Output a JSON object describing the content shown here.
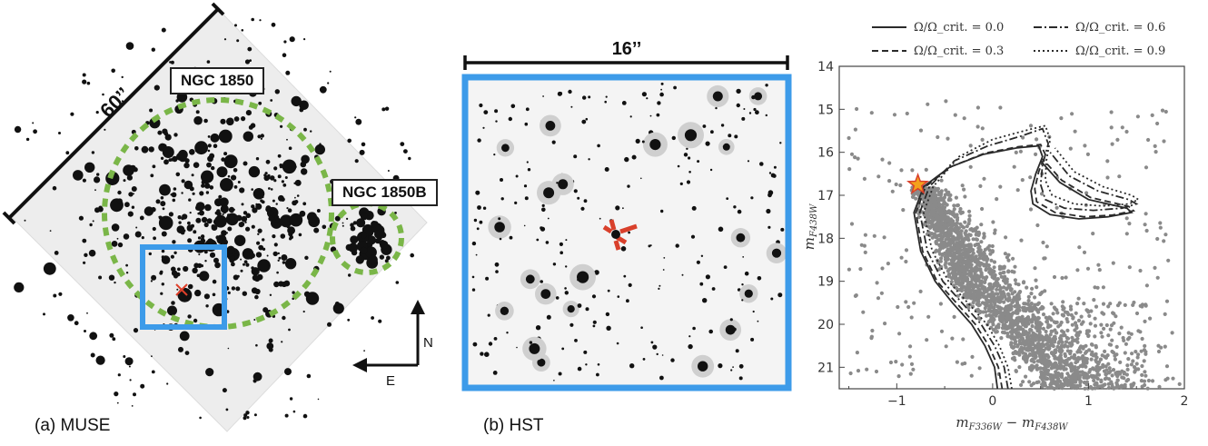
{
  "panel_a": {
    "scale_label": "60’’",
    "cluster_label": "NGC 1850",
    "cluster_b_label": "NGC 1850B",
    "compass_n": "N",
    "compass_e": "E",
    "caption_letter": "(a)",
    "caption_text": "MUSE",
    "colors": {
      "circle": "#7ab648",
      "box": "#3d9be9",
      "marker": "#e0402a"
    }
  },
  "panel_b": {
    "scale_label": "16’’",
    "caption_letter": "(b)",
    "caption_text": "HST",
    "colors": {
      "frame": "#3d9be9",
      "marker": "#d9402b"
    }
  },
  "chart_data": {
    "type": "scatter",
    "xlabel": "m_F336W − m_F438W",
    "ylabel": "m_F438W",
    "xlim": [
      -1.6,
      2.0
    ],
    "ylim": [
      21.5,
      14.0
    ],
    "x_ticks": [
      "−1",
      "0",
      "1",
      "2"
    ],
    "y_ticks": [
      "14",
      "15",
      "16",
      "17",
      "18",
      "19",
      "20",
      "21"
    ],
    "legend": [
      {
        "label": "Ω/Ω_crit. = 0.0",
        "style": "solid"
      },
      {
        "label": "Ω/Ω_crit. = 0.6",
        "style": "dashdot"
      },
      {
        "label": "Ω/Ω_crit. = 0.3",
        "style": "dashed"
      },
      {
        "label": "Ω/Ω_crit. = 0.9",
        "style": "dotted"
      }
    ],
    "highlighted_star": {
      "x": -0.78,
      "y": 16.75
    },
    "series": [
      {
        "name": "Ω/Ω_crit. = 0.0",
        "style": "solid",
        "x": [
          0.05,
          0.02,
          -0.08,
          -0.22,
          -0.42,
          -0.6,
          -0.75,
          -0.82,
          -0.72,
          -0.45,
          -0.1,
          0.25,
          0.48,
          0.52,
          0.45,
          0.4,
          0.42,
          0.6,
          0.9,
          1.2,
          1.45,
          1.4,
          1.0,
          0.7,
          0.5
        ],
        "y": [
          21.5,
          21.0,
          20.5,
          20.0,
          19.5,
          19.0,
          18.3,
          17.4,
          16.8,
          16.35,
          16.05,
          15.9,
          15.85,
          16.1,
          16.5,
          16.9,
          17.2,
          17.45,
          17.55,
          17.5,
          17.4,
          17.3,
          17.1,
          16.7,
          16.2
        ]
      },
      {
        "name": "Ω/Ω_crit. = 0.3",
        "style": "dashed",
        "x": [
          0.1,
          0.06,
          -0.04,
          -0.18,
          -0.38,
          -0.58,
          -0.73,
          -0.8,
          -0.7,
          -0.43,
          -0.08,
          0.27,
          0.5,
          0.55,
          0.48,
          0.44,
          0.46,
          0.65,
          0.95,
          1.25,
          1.47,
          1.42,
          1.02,
          0.72,
          0.52
        ],
        "y": [
          21.5,
          21.0,
          20.5,
          20.0,
          19.5,
          19.0,
          18.3,
          17.4,
          16.8,
          16.33,
          16.02,
          15.87,
          15.82,
          16.05,
          16.45,
          16.85,
          17.15,
          17.4,
          17.5,
          17.46,
          17.36,
          17.26,
          17.05,
          16.65,
          16.15
        ]
      },
      {
        "name": "Ω/Ω_crit. = 0.6",
        "style": "dashdot",
        "x": [
          0.16,
          0.12,
          0.02,
          -0.12,
          -0.32,
          -0.52,
          -0.68,
          -0.76,
          -0.66,
          -0.4,
          -0.05,
          0.3,
          0.52,
          0.58,
          0.52,
          0.5,
          0.55,
          0.75,
          1.05,
          1.35,
          1.5,
          1.42,
          1.1,
          0.8,
          0.6
        ],
        "y": [
          21.5,
          21.0,
          20.5,
          20.0,
          19.5,
          19.0,
          18.3,
          17.4,
          16.8,
          16.2,
          15.85,
          15.62,
          15.45,
          15.8,
          16.3,
          16.75,
          17.1,
          17.3,
          17.35,
          17.3,
          17.2,
          17.1,
          16.9,
          16.55,
          16.0
        ]
      },
      {
        "name": "Ω/Ω_crit. = 0.9",
        "style": "dotted",
        "x": [
          0.2,
          0.16,
          0.07,
          -0.06,
          -0.26,
          -0.46,
          -0.63,
          -0.72,
          -0.62,
          -0.35,
          0.0,
          0.33,
          0.55,
          0.6,
          0.56,
          0.55,
          0.62,
          0.85,
          1.15,
          1.42,
          1.52,
          1.45,
          1.15,
          0.85,
          0.65
        ],
        "y": [
          21.5,
          21.0,
          20.5,
          20.0,
          19.5,
          19.0,
          18.3,
          17.4,
          16.8,
          16.1,
          15.7,
          15.5,
          15.38,
          15.7,
          16.2,
          16.65,
          17.0,
          17.2,
          17.25,
          17.2,
          17.1,
          17.0,
          16.8,
          16.45,
          15.9
        ]
      }
    ]
  }
}
